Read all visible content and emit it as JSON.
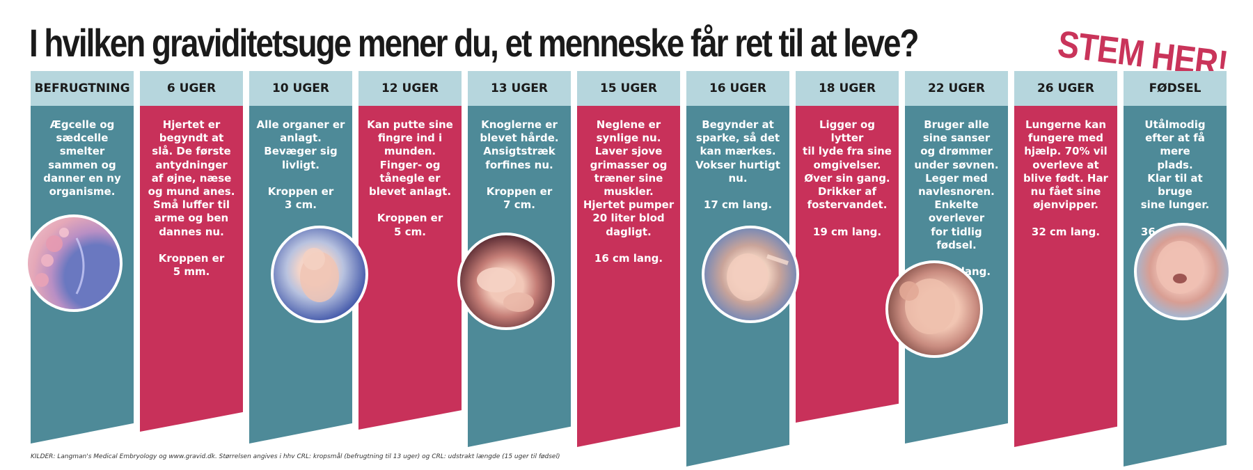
{
  "title": "I hvilken graviditetsuge mener du, et menneske får ret til at leve?",
  "cta": "STEM HER!",
  "colors": {
    "teal": "#4e8a98",
    "pink": "#c8315a",
    "header": "#b6d6dd",
    "accent": "#c9345a"
  },
  "columns": [
    {
      "label": "BEFRUGTNING",
      "text": "Ægcelle og\nsædcelle\nsmelter\nsammen og\ndanner en ny\norganisme.",
      "color": "teal",
      "image": "egg-cell-fertilization-image"
    },
    {
      "label": "6 UGER",
      "text": "Hjertet er\nbegyndt at\nslå. De første\nantydninger\naf øjne, næse\nog mund anes.\nSmå luffer til\narme og ben\ndannes nu.\n\nKroppen er\n5 mm.",
      "color": "pink"
    },
    {
      "label": "10 UGER",
      "text": "Alle organer er\nanlagt.\nBevæger sig\nlivligt.\n\nKroppen er\n3 cm.",
      "color": "teal",
      "image": "fetus-10-weeks-image"
    },
    {
      "label": "12 UGER",
      "text": "Kan putte sine\nfingre ind i\nmunden.\nFinger- og\ntånegle er\nblevet anlagt.\n\nKroppen er\n5 cm.",
      "color": "pink"
    },
    {
      "label": "13 UGER",
      "text": "Knoglerne er\nblevet hårde.\nAnsigtstræk\nforfines nu.\n\nKroppen er\n7 cm.",
      "color": "teal",
      "image": "fetus-hands-feet-image"
    },
    {
      "label": "15 UGER",
      "text": "Neglene er\nsynlige nu.\nLaver sjove\ngrimasser og\ntræner sine\nmuskler.\nHjertet pumper\n20 liter blod\ndagligt.\n\n16 cm lang.",
      "color": "pink"
    },
    {
      "label": "16 UGER",
      "text": "Begynder at\nsparke, så det\nkan mærkes.\nVokser hurtigt\nnu.\n\n17 cm lang.",
      "color": "teal",
      "image": "fetus-16-weeks-image"
    },
    {
      "label": "18 UGER",
      "text": "Ligger og lytter\ntil lyde fra sine\nomgivelser.\nØver sin gang.\nDrikker af\nfostervandet.\n\n19 cm lang.",
      "color": "pink"
    },
    {
      "label": "22 UGER",
      "text": "Bruger alle\nsine sanser\nog drømmer\nunder søvnen.\nLeger med\nnavlesnoren.\nEnkelte overlever\nfor tidlig fødsel.\n\n28 cm lang.",
      "color": "teal",
      "image": "fetus-face-profile-image"
    },
    {
      "label": "26 UGER",
      "text": "Lungerne kan\nfungere med\nhjælp. 70% vil\noverleve at\nblive født. Har\nnu fået sine\nøjenvipper.\n\n32 cm lang.",
      "color": "pink"
    },
    {
      "label": "FØDSEL",
      "text": "Utålmodig\nefter at få mere\nplads.\nKlar til at bruge\nsine lunger.\n\n36 cm lang.",
      "color": "teal",
      "image": "newborn-baby-image"
    }
  ],
  "footer": "KILDER: Langman's Medical Embryology og www.gravid.dk. Størrelsen angives i hhv CRL: kropsmål (befrugtning til 13 uger) og CRL: udstrakt længde (15 uger til fødsel)"
}
